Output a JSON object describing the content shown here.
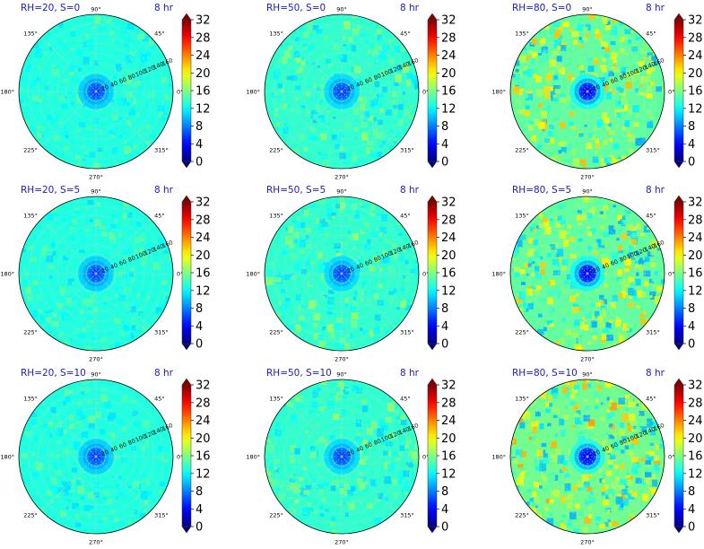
{
  "figure": {
    "grid": true,
    "colormap": "jet",
    "colorbar": {
      "ticks": [
        "0",
        "4",
        "8",
        "12",
        "16",
        "20",
        "24",
        "28",
        "32"
      ],
      "range": [
        0,
        32
      ]
    },
    "angle_labels": [
      "0°",
      "45°",
      "90°",
      "135°",
      "180°",
      "225°",
      "270°",
      "315°"
    ],
    "radial_labels": [
      "20",
      "40",
      "60",
      "80",
      "100",
      "120",
      "140",
      "160"
    ],
    "radial_max": 160
  },
  "chart_data": [
    {
      "type": "heatmap",
      "projection": "polar",
      "title": "RH=20, S=0",
      "time_label": "8 hr",
      "rh": 20,
      "s": 0,
      "center_value": 6,
      "field_mean": 13,
      "variability": 1.0
    },
    {
      "type": "heatmap",
      "projection": "polar",
      "title": "RH=50, S=0",
      "time_label": "8 hr",
      "rh": 50,
      "s": 0,
      "center_value": 6,
      "field_mean": 13.5,
      "variability": 1.5
    },
    {
      "type": "heatmap",
      "projection": "polar",
      "title": "RH=80, S=0",
      "time_label": "8 hr",
      "rh": 80,
      "s": 0,
      "center_value": 4,
      "field_mean": 15,
      "variability": 3.0
    },
    {
      "type": "heatmap",
      "projection": "polar",
      "title": "RH=20, S=5",
      "time_label": "8 hr",
      "rh": 20,
      "s": 5,
      "center_value": 6,
      "field_mean": 13,
      "variability": 1.0
    },
    {
      "type": "heatmap",
      "projection": "polar",
      "title": "RH=50, S=5",
      "time_label": "8 hr",
      "rh": 50,
      "s": 5,
      "center_value": 6,
      "field_mean": 13.5,
      "variability": 1.5
    },
    {
      "type": "heatmap",
      "projection": "polar",
      "title": "RH=80, S=5",
      "time_label": "8 hr",
      "rh": 80,
      "s": 5,
      "center_value": 4,
      "field_mean": 15,
      "variability": 3.0
    },
    {
      "type": "heatmap",
      "projection": "polar",
      "title": "RH=20, S=10",
      "time_label": "8 hr",
      "rh": 20,
      "s": 10,
      "center_value": 6,
      "field_mean": 13,
      "variability": 1.0
    },
    {
      "type": "heatmap",
      "projection": "polar",
      "title": "RH=50, S=10",
      "time_label": "8 hr",
      "rh": 50,
      "s": 10,
      "center_value": 6,
      "field_mean": 13.5,
      "variability": 1.5
    },
    {
      "type": "heatmap",
      "projection": "polar",
      "title": "RH=80, S=10",
      "time_label": "8 hr",
      "rh": 80,
      "s": 10,
      "center_value": 4,
      "field_mean": 15.5,
      "variability": 3.2
    }
  ]
}
